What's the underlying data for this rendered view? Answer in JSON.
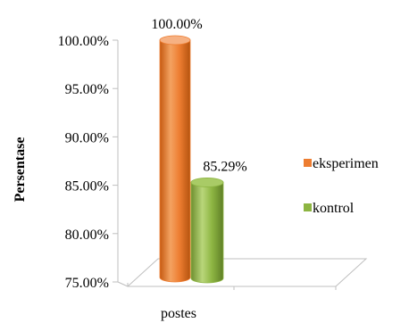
{
  "chart_data": {
    "type": "bar",
    "style": "3d-cylinder",
    "categories": [
      "postes"
    ],
    "series": [
      {
        "name": "eksperimen",
        "values": [
          100.0
        ],
        "label": "100.00%",
        "color": "#ED7D31"
      },
      {
        "name": "kontrol",
        "values": [
          85.29
        ],
        "label": "85.29%",
        "color": "#8DB542"
      }
    ],
    "title": "",
    "xlabel": "",
    "ylabel": "Persentase",
    "ylim": [
      75,
      100
    ],
    "yticks": [
      75,
      80,
      85,
      90,
      95,
      100
    ],
    "ytick_labels": [
      "75.00%",
      "80.00%",
      "85.00%",
      "90.00%",
      "95.00%",
      "100.00%"
    ],
    "grid": false,
    "legend_position": "right"
  }
}
